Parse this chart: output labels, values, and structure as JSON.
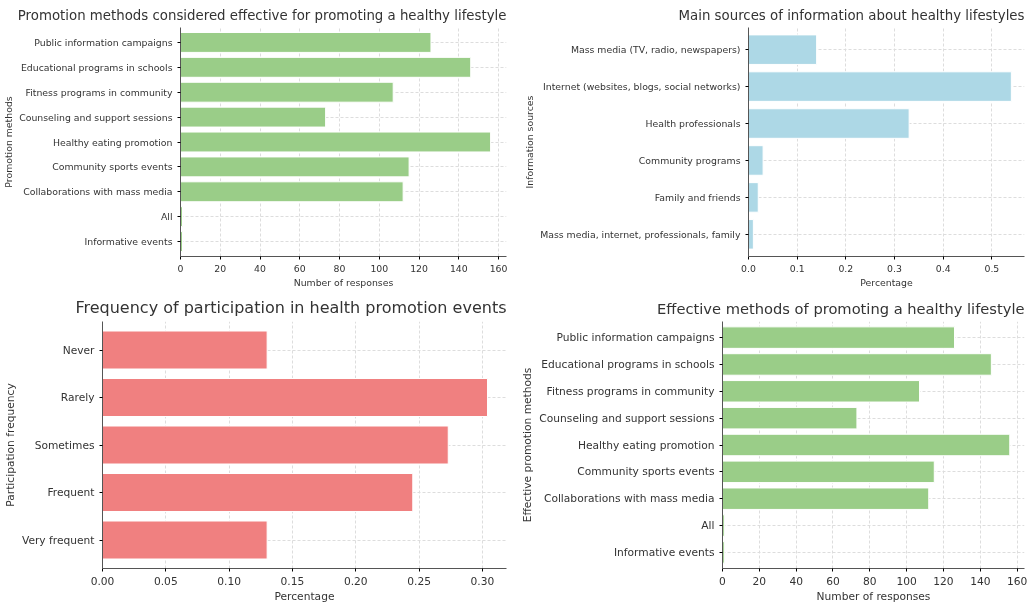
{
  "chart_data": [
    {
      "type": "bar",
      "orientation": "horizontal",
      "title": "Promotion methods considered effective for promoting a healthy lifestyle",
      "xlabel": "Number of responses",
      "ylabel": "Promotion methods",
      "categories": [
        "Public information campaigns",
        "Educational programs in schools",
        "Fitness programs in community",
        "Counseling and support sessions",
        "Healthy eating promotion",
        "Community sports events",
        "Collaborations with mass media",
        "All",
        "Informative events"
      ],
      "values": [
        126,
        146,
        107,
        73,
        156,
        115,
        112,
        1,
        1
      ],
      "color": "#9acd88",
      "xlim": [
        0,
        164
      ],
      "xticks": [
        0,
        20,
        40,
        60,
        80,
        100,
        120,
        140,
        160
      ],
      "grid": true
    },
    {
      "type": "bar",
      "orientation": "horizontal",
      "title": "Main sources of information about healthy lifestyles",
      "xlabel": "Percentage",
      "ylabel": "Information sources",
      "categories": [
        "Mass media (TV, radio, newspapers)",
        "Internet (websites, blogs, social networks)",
        "Health professionals",
        "Community programs",
        "Family and friends",
        "Mass media, internet, professionals, family"
      ],
      "values": [
        0.14,
        0.54,
        0.33,
        0.03,
        0.02,
        0.01
      ],
      "color": "#add8e6",
      "xlim": [
        0,
        0.567
      ],
      "xticks": [
        {
          "value": 0,
          "label": "0.0"
        },
        0.1,
        0.2,
        0.3,
        0.4,
        0.5
      ],
      "grid": true
    },
    {
      "type": "bar",
      "orientation": "horizontal",
      "title": "Frequency of participation in health promotion events",
      "xlabel": "Percentage",
      "ylabel": "Participation frequency",
      "categories": [
        "Never",
        "Rarely",
        "Sometimes",
        "Frequent",
        "Very frequent"
      ],
      "values": [
        0.13,
        0.304,
        0.273,
        0.245,
        0.13
      ],
      "color": "#f08080",
      "xlim": [
        0,
        0.319
      ],
      "xticks": [
        {
          "value": 0,
          "label": "0.00"
        },
        {
          "value": 0.05,
          "label": "0.05"
        },
        {
          "value": 0.1,
          "label": "0.10"
        },
        {
          "value": 0.15,
          "label": "0.15"
        },
        {
          "value": 0.2,
          "label": "0.20"
        },
        {
          "value": 0.25,
          "label": "0.25"
        },
        {
          "value": 0.3,
          "label": "0.30"
        }
      ],
      "grid": true
    },
    {
      "type": "bar",
      "orientation": "horizontal",
      "title": "Effective methods of promoting a healthy lifestyle",
      "xlabel": "Number of responses",
      "ylabel": "Effective promotion methods",
      "categories": [
        "Public information campaigns",
        "Educational programs in schools",
        "Fitness programs in community",
        "Counseling and support sessions",
        "Healthy eating promotion",
        "Community sports events",
        "Collaborations with mass media",
        "All",
        "Informative events"
      ],
      "values": [
        126,
        146,
        107,
        73,
        156,
        115,
        112,
        1,
        1
      ],
      "color": "#9acd88",
      "xlim": [
        0,
        164
      ],
      "xticks": [
        0,
        20,
        40,
        60,
        80,
        100,
        120,
        140,
        160
      ],
      "grid": true
    }
  ]
}
